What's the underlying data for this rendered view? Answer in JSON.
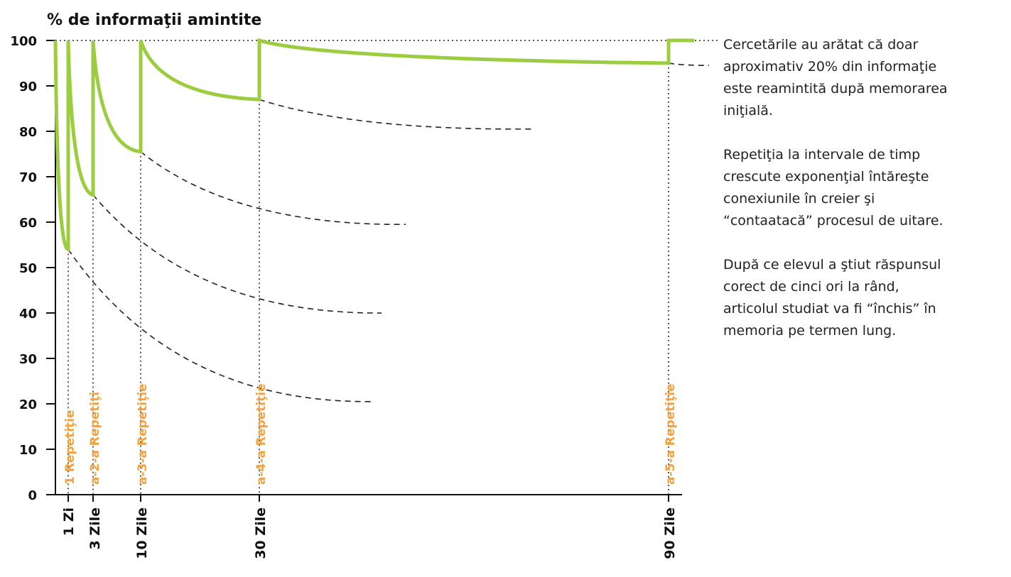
{
  "chart_data": {
    "type": "line",
    "title": "% de informaţii amintite",
    "xlabel": "",
    "ylabel": "",
    "ylim": [
      0,
      100
    ],
    "y_ticks": [
      0,
      10,
      20,
      30,
      40,
      50,
      60,
      70,
      80,
      90,
      100
    ],
    "x_tick_labels": [
      "1 Zi",
      "3 Zile",
      "10 Zile",
      "30 Zile",
      "90 Zile"
    ],
    "repetition_labels": [
      "1 Repetiţie",
      "a-2-a Repetiţi",
      "a-3-a Repetiţie",
      "a-4-a Repetiţie",
      "a-5-a Repetiţie"
    ],
    "retention_minimums": [
      54,
      66,
      75.5,
      87,
      95
    ],
    "colors": {
      "curve": "#9ccc40",
      "label": "#f5a23c",
      "dashed": "#222222",
      "axis": "#111111"
    },
    "grid": false,
    "legend": "none"
  },
  "notes": [
    "Cercetările au arătat că doar\naproximativ 20% din informaţie\neste reamintită după memorarea\niniţială.",
    "Repetiţia la intervale de timp\ncrescute exponenţial întăreşte\nconexiunile în creier şi\n“contaatacă” procesul de uitare.",
    "După ce elevul a ştiut răspunsul\ncorect de cinci ori la rând,\narticolul studiat va fi “închis” în\nmemoria pe termen lung."
  ]
}
